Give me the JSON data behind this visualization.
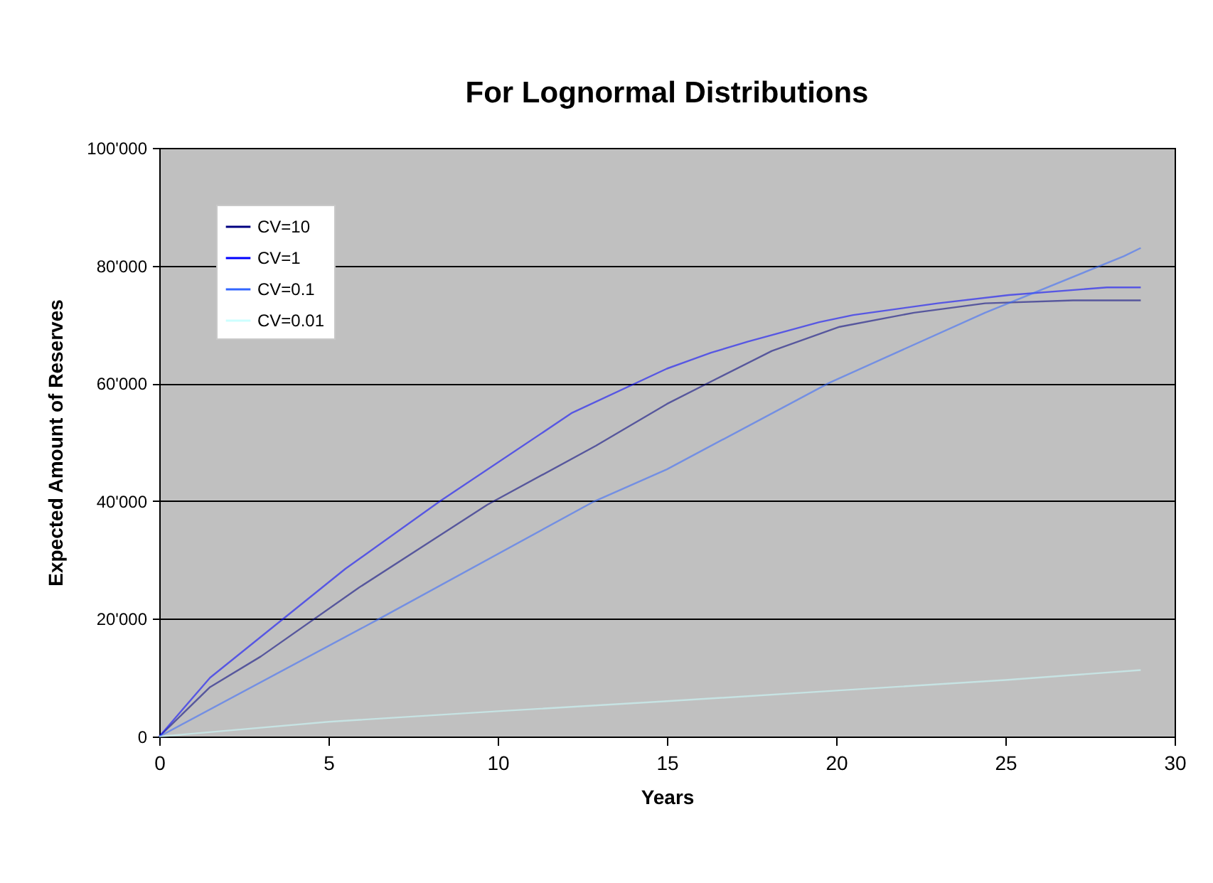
{
  "chart_data": {
    "type": "line",
    "title": "For Lognormal Distributions",
    "xlabel": "Years",
    "ylabel": "Expected Amount of Reserves",
    "xlim": [
      0,
      30
    ],
    "xticks": [
      0,
      5,
      10,
      15,
      20,
      25,
      30
    ],
    "ylim": [
      0,
      100000
    ],
    "yticks": [
      0,
      {
        "value": 20000,
        "label": "20'000"
      },
      {
        "value": 40000,
        "label": "40'000"
      },
      {
        "value": 60000,
        "label": "60'000"
      },
      {
        "value": 80000,
        "label": "80'000"
      },
      {
        "value": 100000,
        "label": "100'000"
      }
    ],
    "grid": "y",
    "legend": "top left",
    "line_style": "solid",
    "series": [
      {
        "name": "CV=10",
        "color": "#000080",
        "x": [
          0,
          1.5,
          3,
          5.9,
          9.7,
          12.9,
          15,
          16.3,
          18.1,
          20.1,
          22.3,
          24.4,
          27,
          29
        ],
        "values": [
          0,
          8400,
          13600,
          25300,
          39400,
          49400,
          56500,
          60300,
          65500,
          69600,
          72000,
          73600,
          74100,
          74100
        ]
      },
      {
        "name": "CV=1",
        "color": "#0000ff",
        "x": [
          0,
          1.5,
          5.5,
          8.3,
          12.2,
          15,
          16.3,
          17.4,
          19.5,
          20.5,
          23,
          25.1,
          28,
          29
        ],
        "values": [
          0,
          10000,
          28500,
          40000,
          55000,
          62500,
          65200,
          67100,
          70400,
          71600,
          73600,
          75000,
          76300,
          76300
        ]
      },
      {
        "name": "CV=0.1",
        "color": "#3366ff",
        "x": [
          0,
          6.5,
          12.8,
          15,
          19.8,
          24.4,
          28.5,
          29
        ],
        "values": [
          0,
          20000,
          39800,
          45400,
          60100,
          72000,
          81600,
          83000
        ]
      },
      {
        "name": "CV=0.01",
        "color": "#ccffff",
        "x": [
          0,
          5,
          10,
          15,
          20,
          25,
          29
        ],
        "values": [
          0,
          2500,
          4300,
          6000,
          7800,
          9600,
          11300
        ]
      }
    ]
  }
}
